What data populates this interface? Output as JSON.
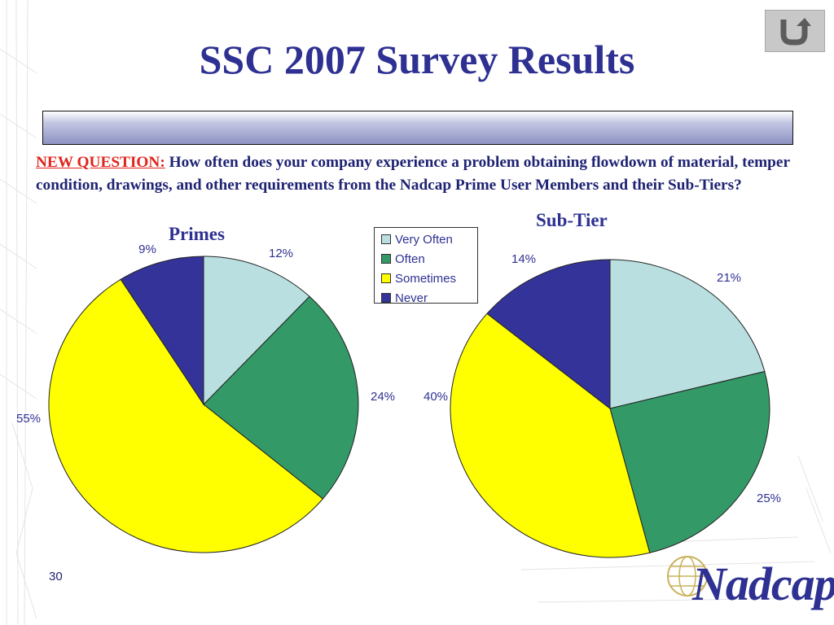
{
  "title": "SSC 2007 Survey Results",
  "question": {
    "tag": "NEW QUESTION:",
    "text": " How often does your company experience a problem obtaining flowdown of material, temper condition, drawings, and other requirements from the Nadcap Prime User Members and their Sub-Tiers?"
  },
  "legend": [
    {
      "label": "Very Often",
      "color": "#b9dfe1"
    },
    {
      "label": "Often",
      "color": "#339966"
    },
    {
      "label": "Sometimes",
      "color": "#ffff00"
    },
    {
      "label": "Never",
      "color": "#333399"
    }
  ],
  "chart_data": [
    {
      "type": "pie",
      "title": "Primes",
      "categories": [
        "Very Often",
        "Often",
        "Sometimes",
        "Never"
      ],
      "values": [
        12,
        24,
        55,
        9
      ],
      "labels": [
        "12%",
        "24%",
        "55%",
        "9%"
      ],
      "colors": [
        "#b9dfe1",
        "#339966",
        "#ffff00",
        "#333399"
      ]
    },
    {
      "type": "pie",
      "title": "Sub-Tier",
      "categories": [
        "Very Often",
        "Often",
        "Sometimes",
        "Never"
      ],
      "values": [
        21,
        25,
        40,
        14
      ],
      "labels": [
        "21%",
        "25%",
        "40%",
        "14%"
      ],
      "colors": [
        "#b9dfe1",
        "#339966",
        "#ffff00",
        "#333399"
      ]
    }
  ],
  "slide_number": "30",
  "logo_text": "Nadcap",
  "icons": {
    "back": "u-turn-back-icon",
    "globe": "globe-icon"
  }
}
